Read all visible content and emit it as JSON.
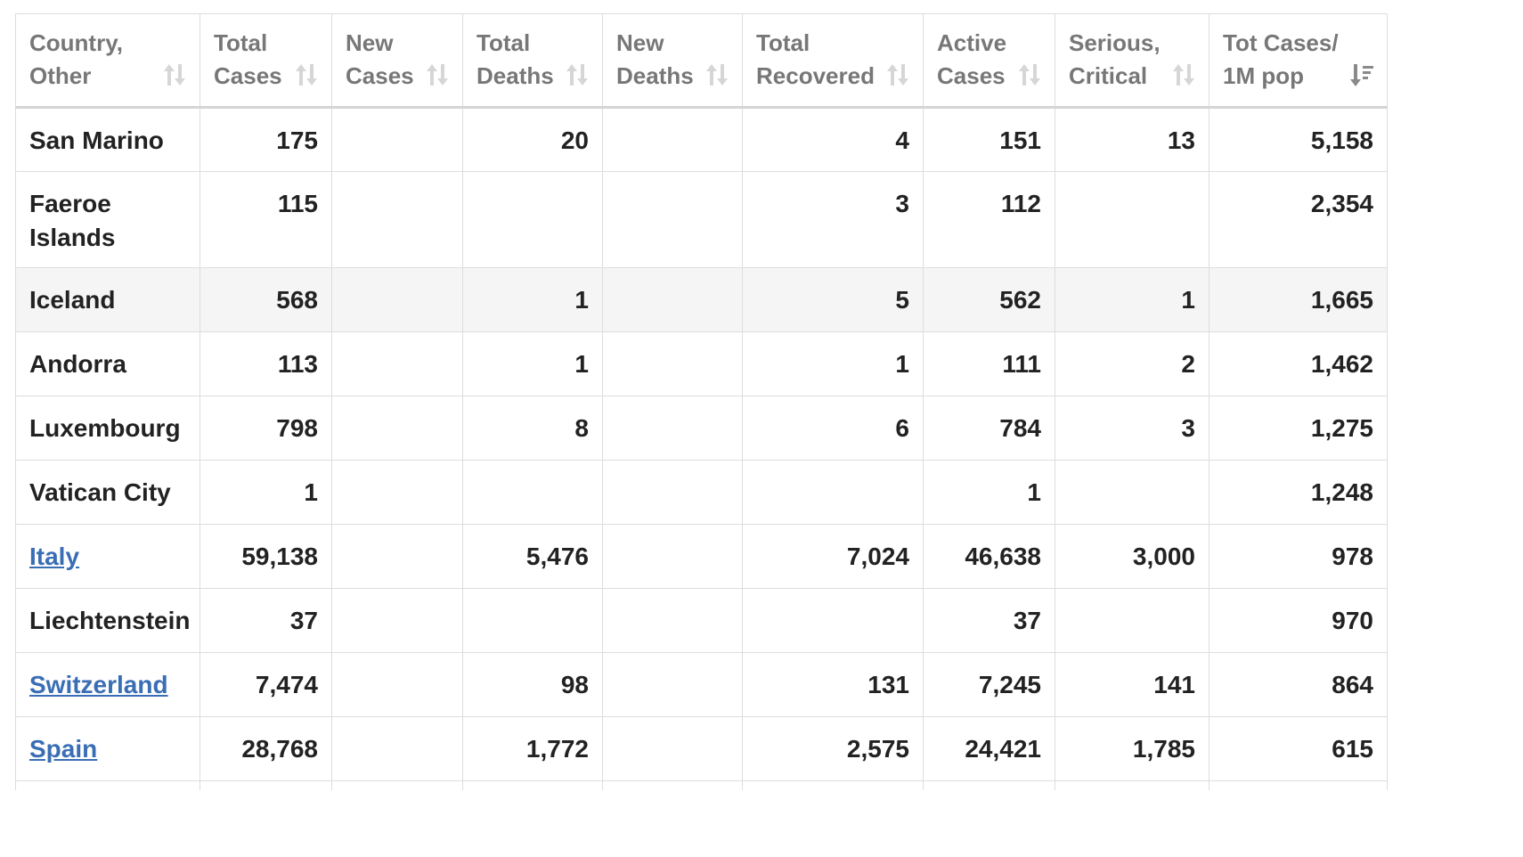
{
  "table": {
    "headers": [
      {
        "line1": "Country,",
        "line2": "Other",
        "sort": "default"
      },
      {
        "line1": "Total",
        "line2": "Cases",
        "sort": "default"
      },
      {
        "line1": "New",
        "line2": "Cases",
        "sort": "default"
      },
      {
        "line1": "Total",
        "line2": "Deaths",
        "sort": "default"
      },
      {
        "line1": "New",
        "line2": "Deaths",
        "sort": "default"
      },
      {
        "line1": "Total",
        "line2": "Recovered",
        "sort": "default"
      },
      {
        "line1": "Active",
        "line2": "Cases",
        "sort": "default"
      },
      {
        "line1": "Serious,",
        "line2": "Critical",
        "sort": "default"
      },
      {
        "line1": "Tot Cases/",
        "line2": "1M pop",
        "sort": "desc"
      }
    ],
    "rows": [
      {
        "country": "San Marino",
        "link": false,
        "total_cases": "175",
        "new_cases": "",
        "total_deaths": "20",
        "new_deaths": "",
        "total_recovered": "4",
        "active_cases": "151",
        "serious_critical": "13",
        "per_million": "5,158"
      },
      {
        "country": "Faeroe Islands",
        "link": false,
        "total_cases": "115",
        "new_cases": "",
        "total_deaths": "",
        "new_deaths": "",
        "total_recovered": "3",
        "active_cases": "112",
        "serious_critical": "",
        "per_million": "2,354"
      },
      {
        "country": "Iceland",
        "link": false,
        "total_cases": "568",
        "new_cases": "",
        "total_deaths": "1",
        "new_deaths": "",
        "total_recovered": "5",
        "active_cases": "562",
        "serious_critical": "1",
        "per_million": "1,665"
      },
      {
        "country": "Andorra",
        "link": false,
        "total_cases": "113",
        "new_cases": "",
        "total_deaths": "1",
        "new_deaths": "",
        "total_recovered": "1",
        "active_cases": "111",
        "serious_critical": "2",
        "per_million": "1,462"
      },
      {
        "country": "Luxembourg",
        "link": false,
        "total_cases": "798",
        "new_cases": "",
        "total_deaths": "8",
        "new_deaths": "",
        "total_recovered": "6",
        "active_cases": "784",
        "serious_critical": "3",
        "per_million": "1,275"
      },
      {
        "country": "Vatican City",
        "link": false,
        "total_cases": "1",
        "new_cases": "",
        "total_deaths": "",
        "new_deaths": "",
        "total_recovered": "",
        "active_cases": "1",
        "serious_critical": "",
        "per_million": "1,248"
      },
      {
        "country": "Italy",
        "link": true,
        "total_cases": "59,138",
        "new_cases": "",
        "total_deaths": "5,476",
        "new_deaths": "",
        "total_recovered": "7,024",
        "active_cases": "46,638",
        "serious_critical": "3,000",
        "per_million": "978"
      },
      {
        "country": "Liechtenstein",
        "link": false,
        "total_cases": "37",
        "new_cases": "",
        "total_deaths": "",
        "new_deaths": "",
        "total_recovered": "",
        "active_cases": "37",
        "serious_critical": "",
        "per_million": "970"
      },
      {
        "country": "Switzerland",
        "link": true,
        "total_cases": "7,474",
        "new_cases": "",
        "total_deaths": "98",
        "new_deaths": "",
        "total_recovered": "131",
        "active_cases": "7,245",
        "serious_critical": "141",
        "per_million": "864"
      },
      {
        "country": "Spain",
        "link": true,
        "total_cases": "28,768",
        "new_cases": "",
        "total_deaths": "1,772",
        "new_deaths": "",
        "total_recovered": "2,575",
        "active_cases": "24,421",
        "serious_critical": "1,785",
        "per_million": "615"
      }
    ]
  },
  "colors": {
    "header_text": "#777777",
    "cell_text": "#222222",
    "link": "#3a6eb4",
    "border": "#dddddd",
    "row_highlight": "#f5f5f5"
  },
  "icons": {
    "sort_default": "sort-both-icon",
    "sort_desc": "sort-desc-icon"
  }
}
